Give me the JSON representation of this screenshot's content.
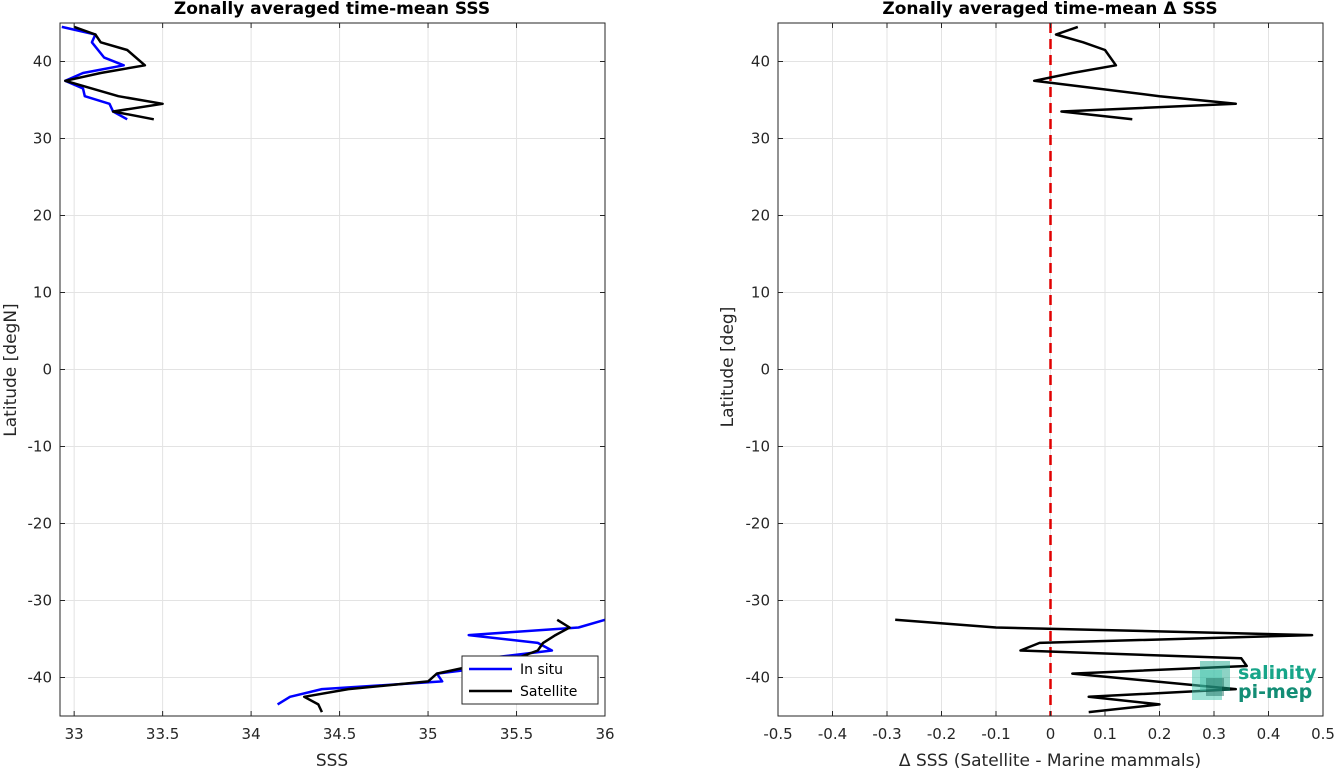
{
  "chart_data": [
    {
      "type": "line",
      "title": "Zonally averaged time-mean SSS",
      "xlabel": "SSS",
      "ylabel": "Latitude [degN]",
      "xlim": [
        32.92,
        36.0
      ],
      "ylim": [
        -45,
        45
      ],
      "xticks": [
        "33",
        "33.5",
        "34",
        "34.5",
        "35",
        "35.5",
        "36"
      ],
      "xtick_values": [
        33,
        33.5,
        34,
        34.5,
        35,
        35.5,
        36
      ],
      "yticks": [
        "40",
        "30",
        "20",
        "10",
        "0",
        "-10",
        "-20",
        "-30",
        "-40"
      ],
      "ytick_values": [
        40,
        30,
        20,
        10,
        0,
        -10,
        -20,
        -30,
        -40
      ],
      "grid": true,
      "legend": "bottom-right",
      "series": [
        {
          "name": "In situ",
          "color": "#0000ff",
          "segments": [
            [
              [
                32.93,
                44.5
              ],
              [
                33.12,
                43.5
              ],
              [
                33.1,
                42.5
              ],
              [
                33.17,
                40.5
              ],
              [
                33.28,
                39.5
              ],
              [
                33.05,
                38.5
              ],
              [
                32.95,
                37.5
              ],
              [
                33.05,
                36.5
              ],
              [
                33.06,
                35.5
              ],
              [
                33.2,
                34.5
              ],
              [
                33.22,
                33.5
              ],
              [
                33.3,
                32.5
              ]
            ],
            [
              [
                36.0,
                -32.5
              ],
              [
                35.85,
                -33.5
              ],
              [
                35.23,
                -34.5
              ],
              [
                35.62,
                -35.5
              ],
              [
                35.7,
                -36.5
              ],
              [
                35.33,
                -37.5
              ],
              [
                35.4,
                -38.5
              ],
              [
                35.05,
                -39.5
              ],
              [
                35.08,
                -40.5
              ],
              [
                34.4,
                -41.5
              ],
              [
                34.22,
                -42.5
              ],
              [
                34.15,
                -43.5
              ]
            ]
          ]
        },
        {
          "name": "Satellite",
          "color": "#000000",
          "segments": [
            [
              [
                33.0,
                44.5
              ],
              [
                33.12,
                43.5
              ],
              [
                33.15,
                42.5
              ],
              [
                33.3,
                41.5
              ],
              [
                33.4,
                39.5
              ],
              [
                33.15,
                38.5
              ],
              [
                32.95,
                37.5
              ],
              [
                33.25,
                35.5
              ],
              [
                33.5,
                34.5
              ],
              [
                33.22,
                33.5
              ],
              [
                33.45,
                32.5
              ]
            ],
            [
              [
                35.73,
                -32.5
              ],
              [
                35.8,
                -33.5
              ],
              [
                35.72,
                -34.5
              ],
              [
                35.65,
                -35.5
              ],
              [
                35.62,
                -36.5
              ],
              [
                35.5,
                -37.5
              ],
              [
                35.25,
                -38.5
              ],
              [
                35.05,
                -39.5
              ],
              [
                35.0,
                -40.5
              ],
              [
                34.55,
                -41.5
              ],
              [
                34.3,
                -42.5
              ],
              [
                34.38,
                -43.5
              ],
              [
                34.4,
                -44.5
              ]
            ]
          ]
        }
      ]
    },
    {
      "type": "line",
      "title": "Zonally averaged time-mean Δ SSS",
      "xlabel": "Δ SSS (Satellite - Marine mammals)",
      "ylabel": "Latitude [deg]",
      "xlim": [
        -0.5,
        0.5
      ],
      "ylim": [
        -45,
        45
      ],
      "xticks": [
        "-0.5",
        "-0.4",
        "-0.3",
        "-0.2",
        "-0.1",
        "0",
        "0.1",
        "0.2",
        "0.3",
        "0.4",
        "0.5"
      ],
      "xtick_values": [
        -0.5,
        -0.4,
        -0.3,
        -0.2,
        -0.1,
        0,
        0.1,
        0.2,
        0.3,
        0.4,
        0.5
      ],
      "yticks": [
        "40",
        "30",
        "20",
        "10",
        "0",
        "-10",
        "-20",
        "-30",
        "-40"
      ],
      "ytick_values": [
        40,
        30,
        20,
        10,
        0,
        -10,
        -20,
        -30,
        -40
      ],
      "grid": true,
      "zero_line_color": "#e00000",
      "series": [
        {
          "color": "#000000",
          "segments": [
            [
              [
                0.05,
                44.5
              ],
              [
                0.01,
                43.5
              ],
              [
                0.06,
                42.5
              ],
              [
                0.1,
                41.5
              ],
              [
                0.12,
                39.5
              ],
              [
                0.04,
                38.5
              ],
              [
                -0.03,
                37.5
              ],
              [
                0.2,
                35.5
              ],
              [
                0.34,
                34.5
              ],
              [
                0.02,
                33.5
              ],
              [
                0.15,
                32.5
              ]
            ],
            [
              [
                -0.285,
                -32.5
              ],
              [
                -0.1,
                -33.5
              ],
              [
                0.48,
                -34.5
              ],
              [
                -0.02,
                -35.5
              ],
              [
                -0.055,
                -36.5
              ],
              [
                0.35,
                -37.5
              ],
              [
                0.36,
                -38.5
              ],
              [
                0.04,
                -39.5
              ],
              [
                0.34,
                -41.5
              ],
              [
                0.07,
                -42.5
              ],
              [
                0.2,
                -43.5
              ],
              [
                0.07,
                -44.5
              ]
            ]
          ]
        }
      ]
    }
  ],
  "logo": {
    "line1": "salinity",
    "line2": "pi-mep",
    "color": "#17a589"
  }
}
